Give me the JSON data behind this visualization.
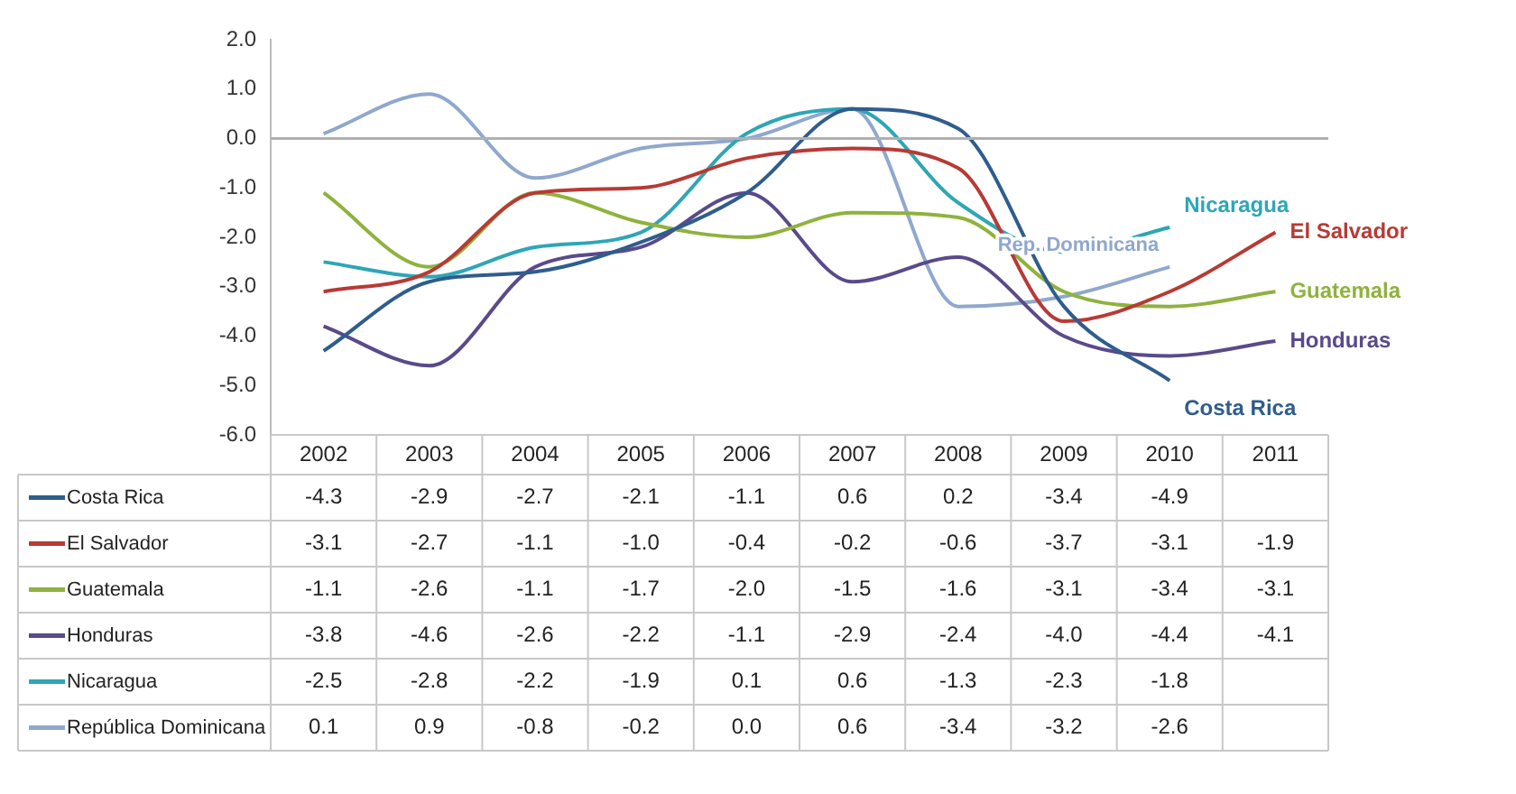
{
  "chart_data": {
    "type": "line",
    "categories": [
      "2002",
      "2003",
      "2004",
      "2005",
      "2006",
      "2007",
      "2008",
      "2009",
      "2010",
      "2011"
    ],
    "series": [
      {
        "name": "Costa Rica",
        "color": "#2f5d8c",
        "values": [
          -4.3,
          -2.9,
          -2.7,
          -2.1,
          -1.1,
          0.6,
          0.2,
          -3.4,
          -4.9,
          null
        ],
        "value_labels": [
          "-4.3",
          "-2.9",
          "-2.7",
          "-2.1",
          "-1.1",
          "0.6",
          "0.2",
          "-3.4",
          "-4.9",
          null
        ]
      },
      {
        "name": "El Salvador",
        "color": "#b83a35",
        "values": [
          -3.1,
          -2.7,
          -1.1,
          -1.0,
          -0.4,
          -0.2,
          -0.6,
          -3.7,
          -3.1,
          -1.9
        ],
        "value_labels": [
          "-3.1",
          "-2.7",
          "-1.1",
          "-1.0",
          "-0.4",
          "-0.2",
          "-0.6",
          "-3.7",
          "-3.1",
          "-1.9"
        ]
      },
      {
        "name": "Guatemala",
        "color": "#8fb23e",
        "values": [
          -1.1,
          -2.6,
          -1.1,
          -1.7,
          -2.0,
          -1.5,
          -1.6,
          -3.1,
          -3.4,
          -3.1
        ],
        "value_labels": [
          "-1.1",
          "-2.6",
          "-1.1",
          "-1.7",
          "-2.0",
          "-1.5",
          "-1.6",
          "-3.1",
          "-3.4",
          "-3.1"
        ]
      },
      {
        "name": "Honduras",
        "color": "#5a4a8a",
        "values": [
          -3.8,
          -4.6,
          -2.6,
          -2.2,
          -1.1,
          -2.9,
          -2.4,
          -4.0,
          -4.4,
          -4.1
        ],
        "value_labels": [
          "-3.8",
          "-4.6",
          "-2.6",
          "-2.2",
          "-1.1",
          "-2.9",
          "-2.4",
          "-4.0",
          "-4.4",
          "-4.1"
        ]
      },
      {
        "name": "Nicaragua",
        "color": "#2ea6b5",
        "values": [
          -2.5,
          -2.8,
          -2.2,
          -1.9,
          0.1,
          0.6,
          -1.3,
          -2.3,
          -1.8,
          null
        ],
        "value_labels": [
          "-2.5",
          "-2.8",
          "-2.2",
          "-1.9",
          "0.1",
          "0.6",
          "-1.3",
          "-2.3",
          "-1.8",
          null
        ]
      },
      {
        "name": "República Dominicana",
        "color": "#8fa8cc",
        "values": [
          0.1,
          0.9,
          -0.8,
          -0.2,
          0.0,
          0.6,
          -3.4,
          -3.2,
          -2.6,
          null
        ],
        "value_labels": [
          "0.1",
          "0.9",
          "-0.8",
          "-0.2",
          "0.0",
          "0.6",
          "-3.4",
          "-3.2",
          "-2.6",
          null
        ]
      }
    ],
    "ylim": [
      -6,
      2
    ],
    "yticks": [
      {
        "value": -6,
        "label": "-6.0"
      },
      {
        "value": -5,
        "label": "-5.0"
      },
      {
        "value": -4,
        "label": "-4.0"
      },
      {
        "value": -3,
        "label": "-3.0"
      },
      {
        "value": -2,
        "label": "-2.0"
      },
      {
        "value": -1,
        "label": "-1.0"
      },
      {
        "value": 0,
        "label": "0.0"
      },
      {
        "value": 1,
        "label": "1.0"
      },
      {
        "value": 2,
        "label": "2.0"
      }
    ],
    "ref_lines": [
      {
        "axis": "y",
        "value": 0,
        "color": "#b0b0b0"
      }
    ],
    "annotations": [
      {
        "text": "Costa Rica",
        "x": "2010",
        "y": -4.9
      },
      {
        "text": "El Salvador",
        "x": "2011",
        "y": -1.9
      },
      {
        "text": "Guatemala",
        "x": "2011",
        "y": -3.1
      },
      {
        "text": "Honduras",
        "x": "2011",
        "y": -4.1
      },
      {
        "text": "Nicaragua",
        "x": "2010",
        "y": -1.8
      },
      {
        "text": "Rep. Dominicana",
        "x": "2010",
        "y": -2.6
      }
    ],
    "legend": "bottom left",
    "grid": false
  }
}
